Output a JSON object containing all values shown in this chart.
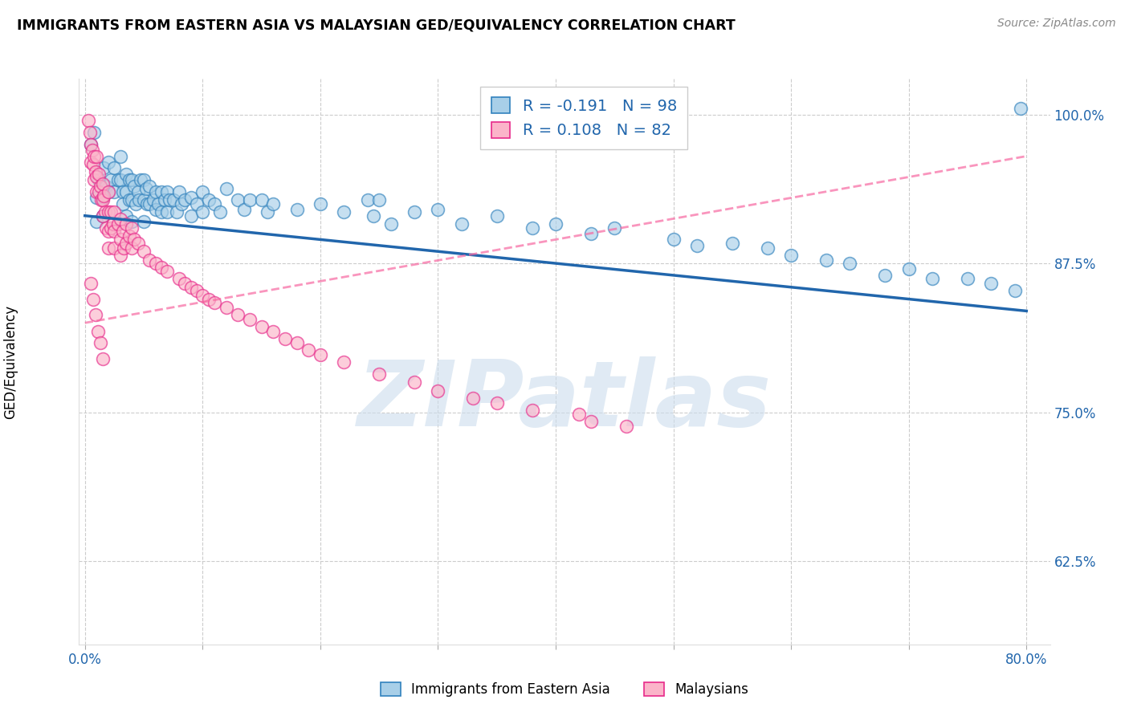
{
  "title": "IMMIGRANTS FROM EASTERN ASIA VS MALAYSIAN GED/EQUIVALENCY CORRELATION CHART",
  "source": "Source: ZipAtlas.com",
  "ylabel": "GED/Equivalency",
  "x_label_blue": "Immigrants from Eastern Asia",
  "x_label_pink": "Malaysians",
  "xlim": [
    -0.005,
    0.82
  ],
  "ylim": [
    0.555,
    1.03
  ],
  "x_ticks": [
    0.0,
    0.1,
    0.2,
    0.3,
    0.4,
    0.5,
    0.6,
    0.7,
    0.8
  ],
  "x_tick_labels": [
    "0.0%",
    "",
    "",
    "",
    "",
    "",
    "",
    "",
    "80.0%"
  ],
  "y_ticks": [
    0.625,
    0.75,
    0.875,
    1.0
  ],
  "y_tick_labels": [
    "62.5%",
    "75.0%",
    "87.5%",
    "100.0%"
  ],
  "legend_blue_R": "-0.191",
  "legend_blue_N": "98",
  "legend_pink_R": "0.108",
  "legend_pink_N": "82",
  "blue_face_color": "#a8cfe8",
  "blue_edge_color": "#3182bd",
  "pink_face_color": "#fbb4c9",
  "pink_edge_color": "#e7298a",
  "blue_line_color": "#2166ac",
  "pink_line_color": "#f768a1",
  "watermark": "ZIPatlas",
  "blue_line_x0": 0.0,
  "blue_line_y0": 0.915,
  "blue_line_x1": 0.8,
  "blue_line_y1": 0.835,
  "pink_line_x0": 0.0,
  "pink_line_y0": 0.825,
  "pink_line_x1": 0.8,
  "pink_line_y1": 0.965,
  "blue_x": [
    0.005,
    0.008,
    0.01,
    0.01,
    0.012,
    0.015,
    0.015,
    0.016,
    0.018,
    0.02,
    0.02,
    0.022,
    0.025,
    0.025,
    0.028,
    0.03,
    0.03,
    0.032,
    0.032,
    0.035,
    0.035,
    0.035,
    0.038,
    0.038,
    0.04,
    0.04,
    0.04,
    0.042,
    0.043,
    0.045,
    0.046,
    0.047,
    0.05,
    0.05,
    0.05,
    0.052,
    0.053,
    0.055,
    0.055,
    0.058,
    0.06,
    0.06,
    0.062,
    0.065,
    0.065,
    0.068,
    0.07,
    0.07,
    0.072,
    0.075,
    0.078,
    0.08,
    0.082,
    0.085,
    0.09,
    0.09,
    0.095,
    0.1,
    0.1,
    0.105,
    0.11,
    0.115,
    0.12,
    0.13,
    0.135,
    0.14,
    0.15,
    0.155,
    0.16,
    0.18,
    0.2,
    0.22,
    0.24,
    0.245,
    0.25,
    0.26,
    0.28,
    0.3,
    0.32,
    0.35,
    0.38,
    0.4,
    0.43,
    0.45,
    0.5,
    0.52,
    0.55,
    0.58,
    0.6,
    0.63,
    0.65,
    0.68,
    0.7,
    0.72,
    0.75,
    0.77,
    0.79,
    0.795
  ],
  "blue_y": [
    0.975,
    0.985,
    0.93,
    0.91,
    0.945,
    0.93,
    0.915,
    0.955,
    0.94,
    0.96,
    0.935,
    0.945,
    0.955,
    0.935,
    0.945,
    0.965,
    0.945,
    0.935,
    0.925,
    0.95,
    0.935,
    0.915,
    0.945,
    0.928,
    0.945,
    0.928,
    0.91,
    0.94,
    0.925,
    0.935,
    0.928,
    0.945,
    0.945,
    0.928,
    0.91,
    0.938,
    0.925,
    0.94,
    0.925,
    0.928,
    0.935,
    0.92,
    0.925,
    0.935,
    0.918,
    0.928,
    0.935,
    0.918,
    0.928,
    0.928,
    0.918,
    0.935,
    0.925,
    0.928,
    0.93,
    0.915,
    0.925,
    0.935,
    0.918,
    0.928,
    0.925,
    0.918,
    0.938,
    0.928,
    0.92,
    0.928,
    0.928,
    0.918,
    0.925,
    0.92,
    0.925,
    0.918,
    0.928,
    0.915,
    0.928,
    0.908,
    0.918,
    0.92,
    0.908,
    0.915,
    0.905,
    0.908,
    0.9,
    0.905,
    0.895,
    0.89,
    0.892,
    0.888,
    0.882,
    0.878,
    0.875,
    0.865,
    0.87,
    0.862,
    0.862,
    0.858,
    0.852,
    1.005
  ],
  "pink_x": [
    0.003,
    0.004,
    0.005,
    0.005,
    0.006,
    0.007,
    0.008,
    0.008,
    0.009,
    0.01,
    0.01,
    0.01,
    0.012,
    0.012,
    0.013,
    0.014,
    0.015,
    0.015,
    0.015,
    0.016,
    0.017,
    0.018,
    0.02,
    0.02,
    0.02,
    0.02,
    0.022,
    0.022,
    0.024,
    0.025,
    0.025,
    0.025,
    0.028,
    0.03,
    0.03,
    0.03,
    0.032,
    0.033,
    0.035,
    0.035,
    0.038,
    0.04,
    0.04,
    0.042,
    0.045,
    0.05,
    0.055,
    0.06,
    0.065,
    0.07,
    0.08,
    0.085,
    0.09,
    0.095,
    0.1,
    0.105,
    0.11,
    0.12,
    0.13,
    0.14,
    0.15,
    0.16,
    0.17,
    0.18,
    0.19,
    0.2,
    0.22,
    0.25,
    0.28,
    0.3,
    0.33,
    0.35,
    0.38,
    0.42,
    0.43,
    0.46,
    0.005,
    0.007,
    0.009,
    0.011,
    0.013,
    0.015
  ],
  "pink_y": [
    0.995,
    0.985,
    0.975,
    0.96,
    0.97,
    0.958,
    0.965,
    0.945,
    0.952,
    0.965,
    0.948,
    0.935,
    0.95,
    0.935,
    0.94,
    0.928,
    0.942,
    0.928,
    0.915,
    0.932,
    0.918,
    0.905,
    0.935,
    0.918,
    0.902,
    0.888,
    0.918,
    0.905,
    0.908,
    0.918,
    0.902,
    0.888,
    0.908,
    0.912,
    0.895,
    0.882,
    0.902,
    0.888,
    0.908,
    0.892,
    0.898,
    0.905,
    0.888,
    0.895,
    0.892,
    0.885,
    0.878,
    0.875,
    0.872,
    0.868,
    0.862,
    0.858,
    0.855,
    0.852,
    0.848,
    0.845,
    0.842,
    0.838,
    0.832,
    0.828,
    0.822,
    0.818,
    0.812,
    0.808,
    0.802,
    0.798,
    0.792,
    0.782,
    0.775,
    0.768,
    0.762,
    0.758,
    0.752,
    0.748,
    0.742,
    0.738,
    0.858,
    0.845,
    0.832,
    0.818,
    0.808,
    0.795
  ]
}
